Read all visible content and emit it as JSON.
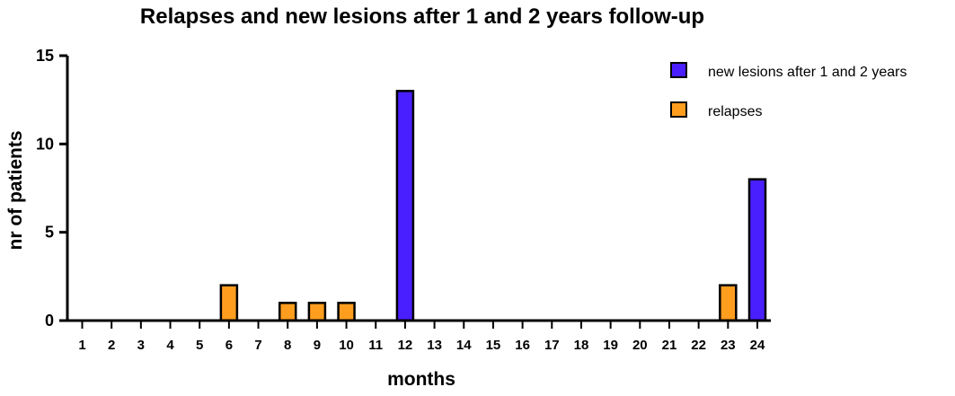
{
  "chart_data": {
    "type": "bar",
    "title": "Relapses and new lesions after 1 and 2 years follow-up",
    "xlabel": "months",
    "ylabel": "nr of patients",
    "ylim": [
      0,
      15
    ],
    "yticks": [
      "0",
      "5",
      "10",
      "15"
    ],
    "categories": [
      "1",
      "2",
      "3",
      "4",
      "5",
      "6",
      "7",
      "8",
      "9",
      "10",
      "11",
      "12",
      "13",
      "14",
      "15",
      "16",
      "17",
      "18",
      "19",
      "20",
      "21",
      "22",
      "23",
      "24"
    ],
    "series": [
      {
        "name": "new lesions after 1 and 2 years",
        "color": "#4a1fff",
        "values": [
          0,
          0,
          0,
          0,
          0,
          0,
          0,
          0,
          0,
          0,
          0,
          13,
          0,
          0,
          0,
          0,
          0,
          0,
          0,
          0,
          0,
          0,
          0,
          8
        ]
      },
      {
        "name": "relapses",
        "color": "#ff9d1f",
        "values": [
          0,
          0,
          0,
          0,
          0,
          2,
          0,
          1,
          1,
          1,
          0,
          0,
          0,
          0,
          0,
          0,
          0,
          0,
          0,
          0,
          0,
          0,
          2,
          0
        ]
      }
    ],
    "legend_position": "top-right",
    "grid": false
  }
}
